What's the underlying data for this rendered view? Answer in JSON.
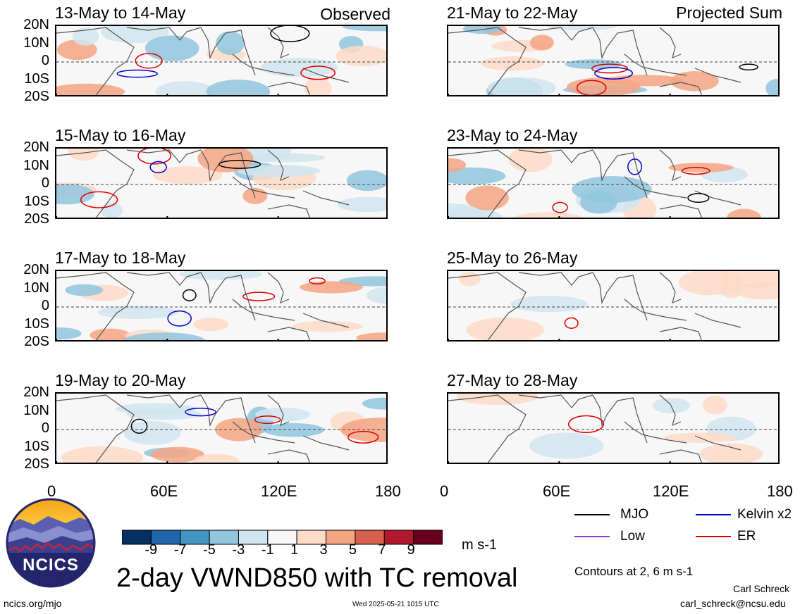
{
  "chart_data": {
    "type": "heatmap",
    "title": "2-day VWND850 with TC removal",
    "units": "m s-1",
    "colorbar": {
      "ticks": [
        "-9",
        "-7",
        "-5",
        "-3",
        "-1",
        "1",
        "3",
        "5",
        "7",
        "9"
      ],
      "colors": [
        "#053061",
        "#2166ac",
        "#4393c3",
        "#92c5de",
        "#d1e5f0",
        "#f7f7f7",
        "#fddbc7",
        "#f4a582",
        "#d6604d",
        "#b2182b",
        "#67001f"
      ]
    },
    "y_ticks": [
      "20N",
      "10N",
      "0",
      "10S",
      "20S"
    ],
    "x_ticks": [
      "0",
      "60E",
      "120E",
      "180"
    ],
    "panels": [
      {
        "title": "13-May to 14-May",
        "tag": "Observed"
      },
      {
        "title": "15-May to 16-May",
        "tag": ""
      },
      {
        "title": "17-May to 18-May",
        "tag": ""
      },
      {
        "title": "19-May to 20-May",
        "tag": ""
      },
      {
        "title": "21-May to 22-May",
        "tag": "Projected Sum"
      },
      {
        "title": "23-May to 24-May",
        "tag": ""
      },
      {
        "title": "25-May to 26-May",
        "tag": ""
      },
      {
        "title": "27-May to 28-May",
        "tag": ""
      }
    ],
    "legend": [
      {
        "label": "MJO",
        "color": "#000000"
      },
      {
        "label": "Kelvin x2",
        "color": "#0000cc"
      },
      {
        "label": "Low",
        "color": "#9932cc"
      },
      {
        "label": "ER",
        "color": "#e00000"
      }
    ],
    "contours_note": "Contours at 2, 6 m s-1"
  },
  "footer": {
    "logo_text": "NCICS",
    "url": "ncics.org/mjo",
    "timestamp": "Wed 2025-05-21 1015 UTC",
    "author": "Carl Schreck",
    "email": "carl_schreck@ncsu.edu"
  }
}
